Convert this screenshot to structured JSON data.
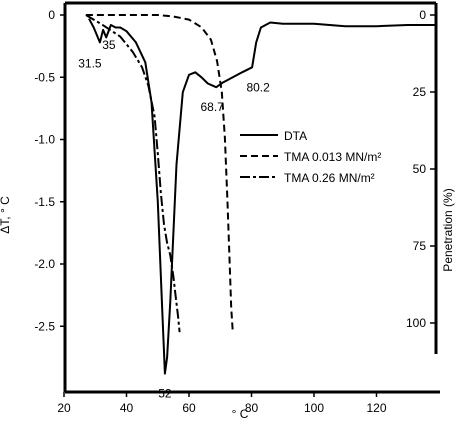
{
  "chart_data": {
    "type": "line",
    "xlabel": "° C",
    "ylabel_left": "ΔT, ° C",
    "ylabel_right": "Penetration (%)",
    "xlim": [
      20,
      140
    ],
    "xticks": [
      "20",
      "40",
      "60",
      "80",
      "100",
      "120"
    ],
    "xtick_values": [
      20,
      40,
      60,
      80,
      100,
      120
    ],
    "ylim_left": [
      -2.65,
      0.05
    ],
    "yticks_left": [
      "0",
      "-0.5",
      "-1.0",
      "-1.5",
      "-2.0",
      "-2.5"
    ],
    "ytick_values_left": [
      0,
      -0.5,
      -1.0,
      -1.5,
      -2.0,
      -2.5
    ],
    "ylim_right": [
      0,
      110
    ],
    "yticks_right": [
      "0",
      "25",
      "50",
      "75",
      "100"
    ],
    "ytick_values_right": [
      0,
      25,
      50,
      75,
      100
    ],
    "grid": false,
    "legend_position": "center-right",
    "series": [
      {
        "name": "DTA",
        "dash": "solid",
        "x": [
          28,
          29.5,
          31.5,
          32.5,
          33.5,
          35,
          36.5,
          38,
          40,
          43,
          46,
          48,
          50,
          51.5,
          52.3,
          53,
          54,
          56,
          58,
          60,
          62,
          64,
          66,
          68.7,
          71,
          74,
          77,
          80.2,
          81.5,
          83,
          86,
          90,
          100,
          110,
          120,
          130,
          139
        ],
        "y": [
          -0.03,
          -0.1,
          -0.22,
          -0.12,
          -0.18,
          -0.08,
          -0.1,
          -0.1,
          -0.13,
          -0.22,
          -0.38,
          -0.7,
          -1.5,
          -2.4,
          -2.88,
          -2.75,
          -2.3,
          -1.2,
          -0.62,
          -0.48,
          -0.46,
          -0.5,
          -0.55,
          -0.58,
          -0.54,
          -0.5,
          -0.46,
          -0.42,
          -0.22,
          -0.1,
          -0.06,
          -0.07,
          -0.07,
          -0.09,
          -0.09,
          -0.08,
          -0.08
        ]
      },
      {
        "name": "TMA 0.013 MN/m²",
        "dash": "dashed",
        "x": [
          27,
          40,
          50,
          55,
          60,
          64,
          67,
          69,
          70.5,
          71.5,
          72.3,
          73,
          73.5,
          74
        ],
        "y": [
          0,
          0,
          0,
          0.5,
          1.5,
          4,
          8,
          15,
          25,
          40,
          60,
          80,
          95,
          103
        ]
      },
      {
        "name": "TMA 0.26 MN/m²",
        "dash": "dash-dot",
        "x": [
          27,
          32,
          38,
          42,
          45,
          47,
          49,
          50,
          51,
          52,
          53,
          54,
          55,
          55.8,
          56.5,
          57
        ],
        "y": [
          0,
          3,
          7,
          12,
          17,
          23,
          33,
          45,
          58,
          68,
          74,
          78,
          85,
          92,
          98,
          103
        ]
      }
    ],
    "peak_labels": [
      {
        "text": "31.5",
        "x": 31.5,
        "y": -0.22
      },
      {
        "text": "35",
        "x": 35,
        "y": -0.08
      },
      {
        "text": "52",
        "x": 52.3,
        "y": -2.88
      },
      {
        "text": "68.7",
        "x": 68.7,
        "y": -0.58
      },
      {
        "text": "80.2",
        "x": 80.2,
        "y": -0.42
      }
    ]
  }
}
